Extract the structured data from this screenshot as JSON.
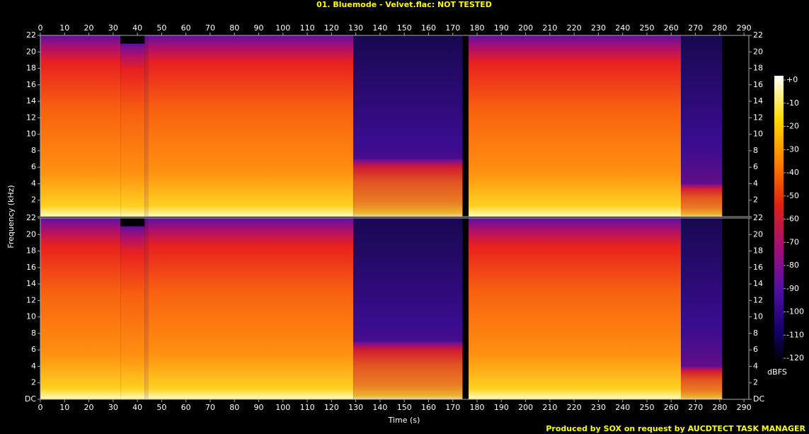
{
  "chart_data": {
    "type": "spectrogram",
    "title": "01. Bluemode - Velvet.flac: NOT TESTED",
    "x_label": "Time (s)",
    "y_label": "Frequency (kHz)",
    "xlim": [
      0,
      292
    ],
    "xticks": [
      0,
      10,
      20,
      30,
      40,
      50,
      60,
      70,
      80,
      90,
      100,
      110,
      120,
      130,
      140,
      150,
      160,
      170,
      180,
      190,
      200,
      210,
      220,
      230,
      240,
      250,
      260,
      270,
      280,
      290
    ],
    "ylim": [
      0,
      22
    ],
    "yticks": [
      {
        "value": 0,
        "label": "DC"
      },
      2,
      4,
      6,
      8,
      10,
      12,
      14,
      16,
      18,
      20,
      22
    ],
    "channels": 2,
    "segments": [
      {
        "start": 0,
        "end": 33,
        "cutoff": 22,
        "sparse": false
      },
      {
        "start": 33,
        "end": 43,
        "cutoff": 21,
        "sparse": false
      },
      {
        "start": 43,
        "end": 44.5,
        "cutoff": 22,
        "sparse": true
      },
      {
        "start": 44.5,
        "end": 129,
        "cutoff": 22,
        "sparse": false
      },
      {
        "start": 129,
        "end": 174,
        "cutoff": 7,
        "sparse": true
      },
      {
        "start": 174,
        "end": 176.5,
        "cutoff": 0,
        "sparse": false
      },
      {
        "start": 176.5,
        "end": 264,
        "cutoff": 22,
        "sparse": false
      },
      {
        "start": 264,
        "end": 281,
        "cutoff": 4,
        "sparse": true
      },
      {
        "start": 281,
        "end": 292,
        "cutoff": 0,
        "sparse": false
      }
    ],
    "colorbar": {
      "label": "dBFS",
      "lim": [
        -120,
        0
      ],
      "ticks": [
        {
          "value": 0,
          "label": "+0"
        },
        -10,
        -20,
        -30,
        -40,
        -50,
        -60,
        -70,
        -80,
        -90,
        -100,
        -110,
        -120
      ]
    },
    "footer": "Produced by SOX on request by AUCDTECT TASK MANAGER"
  }
}
